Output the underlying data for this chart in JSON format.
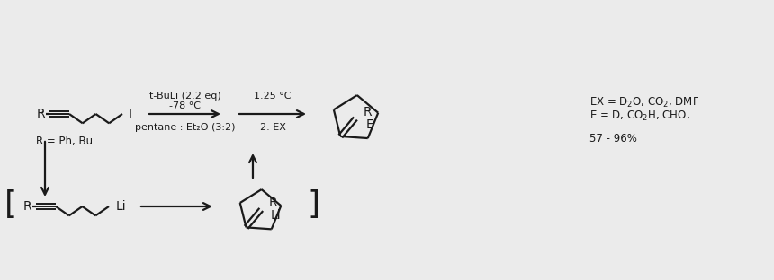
{
  "bg_color": "#ebebeb",
  "line_color": "#1a1a1a",
  "text_color": "#1a1a1a",
  "figsize": [
    8.6,
    3.12
  ],
  "dpi": 100,
  "step1_above1": "t-BuLi (2.2 eq)",
  "step1_above2": "-78 °C",
  "step1_below": "pentane : Et₂O (3:2)",
  "step2_above": "1.25 °C",
  "step2_below": "2. EX",
  "ex_text1": "EX = D₂O, CO₂, DMF",
  "ex_text2": "E = D, CO₂H, CHO,",
  "yield_text": "57 - 96%",
  "r_label": "R = Ph, Bu"
}
